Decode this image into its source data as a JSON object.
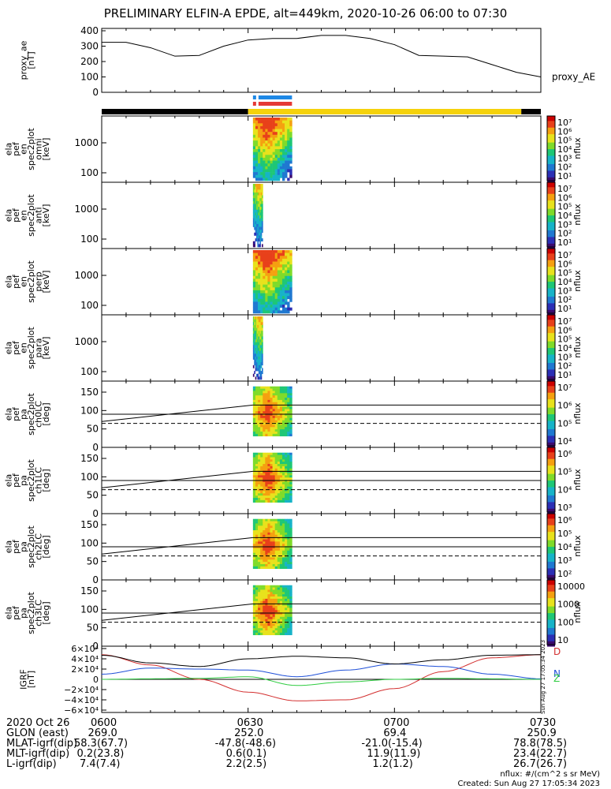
{
  "title": "PRELIMINARY ELFIN-A EPDE, alt=449km, 2020-10-26 06:00 to 07:30",
  "colors": {
    "axis": "#000000",
    "bar_night": "#000000",
    "bar_day": "#f5d20b",
    "bar_blue": "#1e88e5",
    "bar_red": "#e53935",
    "grf_x": "#d32f2f",
    "grf_y": "#1e4fd8",
    "grf_z": "#2ecc40",
    "grf_mag": "#000000"
  },
  "panels": [
    {
      "ylabel": [
        "ela",
        "pef",
        "en",
        "spec2plot",
        "omni",
        "[keV]"
      ],
      "yticks": [
        "1000",
        "100"
      ],
      "cbar_label": "nflux",
      "cbar_ticks": [
        "10⁷",
        "10⁶",
        "10⁵",
        "10⁴",
        "10³",
        "10²",
        "10¹"
      ]
    },
    {
      "ylabel": [
        "ela",
        "pef",
        "en",
        "spec2plot",
        "anti",
        "[keV]"
      ],
      "yticks": [
        "1000",
        "100"
      ],
      "cbar_label": "nflux",
      "cbar_ticks": [
        "10⁷",
        "10⁶",
        "10⁵",
        "10⁴",
        "10³",
        "10²",
        "10¹"
      ]
    },
    {
      "ylabel": [
        "ela",
        "pef",
        "en",
        "spec2plot",
        "perp",
        "[keV]"
      ],
      "yticks": [
        "1000",
        "100"
      ],
      "cbar_label": "nflux",
      "cbar_ticks": [
        "10⁷",
        "10⁶",
        "10⁵",
        "10⁴",
        "10³",
        "10²",
        "10¹"
      ]
    },
    {
      "ylabel": [
        "ela",
        "pef",
        "en",
        "spec2plot",
        "para",
        "[keV]"
      ],
      "yticks": [
        "1000",
        "100"
      ],
      "cbar_label": "nflux",
      "cbar_ticks": [
        "10⁷",
        "10⁶",
        "10⁵",
        "10⁴",
        "10³",
        "10²",
        "10¹"
      ]
    },
    {
      "ylabel": [
        "ela",
        "pef",
        "pa",
        "spec2plot",
        "ch0LC",
        "[deg]"
      ],
      "yticks": [
        "150",
        "100",
        "50",
        "0"
      ],
      "cbar_label": "nflux",
      "cbar_ticks": [
        "10⁷",
        "10⁶",
        "10⁵",
        "10⁴"
      ]
    },
    {
      "ylabel": [
        "ela",
        "pef",
        "pa",
        "spec2plot",
        "ch1LC",
        "[deg]"
      ],
      "yticks": [
        "150",
        "100",
        "50",
        "0"
      ],
      "cbar_label": "nflux",
      "cbar_ticks": [
        "10⁶",
        "10⁵",
        "10⁴",
        "10³"
      ]
    },
    {
      "ylabel": [
        "ela",
        "pef",
        "pa",
        "spec2plot",
        "ch2LC",
        "[deg]"
      ],
      "yticks": [
        "150",
        "100",
        "50",
        "0"
      ],
      "cbar_label": "nflux",
      "cbar_ticks": [
        "10⁶",
        "10⁵",
        "10⁴",
        "10³",
        "10²"
      ]
    },
    {
      "ylabel": [
        "ela",
        "pef",
        "pa",
        "spec2plot",
        "ch3LC",
        "[deg]"
      ],
      "yticks": [
        "150",
        "100",
        "50",
        "0"
      ],
      "cbar_label": "nflux",
      "cbar_ticks": [
        "10000",
        "1000",
        "100",
        "10"
      ]
    }
  ],
  "orbit_table": {
    "rows": [
      {
        "label": "2020 Oct 26",
        "values": [
          "0600",
          "0630",
          "0700",
          "0730"
        ]
      },
      {
        "label": "GLON (east)",
        "values": [
          "269.0",
          "252.0",
          "69.4",
          "250.9"
        ]
      },
      {
        "label": "MLAT-igrf(dip)",
        "values": [
          "58.3(67.7)",
          "-47.8(-48.6)",
          "-21.0(-15.4)",
          "78.8(78.5)"
        ]
      },
      {
        "label": "MLT-igrf(dip)",
        "values": [
          "0.2(23.8)",
          "0.6(0.1)",
          "11.9(11.9)",
          "23.4(22.7)"
        ]
      },
      {
        "label": "L-igrf(dip)",
        "values": [
          "7.4(7.4)",
          "2.2(2.5)",
          "1.2(1.2)",
          "26.7(26.7)"
        ]
      }
    ]
  },
  "footer": {
    "units": "nflux: #/(cm^2 s sr MeV)",
    "created": "Created: Sun Aug 27 17:05:34 2023",
    "side_stamp": "Sun Aug 27 17:05:34 2023"
  },
  "chart_data": [
    {
      "type": "line",
      "title": "",
      "ylabel": [
        "proxy_ae",
        "[nT]"
      ],
      "series_label": "proxy_AE",
      "x": [
        "06:00",
        "06:05",
        "06:10",
        "06:15",
        "06:20",
        "06:25",
        "06:30",
        "06:35",
        "06:40",
        "06:45",
        "06:50",
        "06:55",
        "07:00",
        "07:05",
        "07:10",
        "07:15",
        "07:20",
        "07:25",
        "07:30"
      ],
      "ylim": [
        0,
        400
      ],
      "yticks": [
        0,
        100,
        200,
        300,
        400
      ],
      "series": [
        {
          "values": [
            325,
            325,
            290,
            235,
            240,
            300,
            340,
            350,
            350,
            370,
            370,
            350,
            310,
            240,
            235,
            230,
            180,
            130,
            100
          ]
        }
      ]
    },
    {
      "type": "heatmap",
      "title": "",
      "note_bars": "orbit coverage strip: black=night, yellow=day; blue and red strips mark science zone 06:31–06:39",
      "panels": [
        "omni",
        "anti",
        "perp",
        "para",
        "ch0LC",
        "ch1LC",
        "ch2LC",
        "ch3LC"
      ],
      "data_interval": [
        "06:31",
        "06:39"
      ],
      "energy_range_keV": [
        63,
        7000
      ],
      "pitch_angle_lines_deg": [
        115,
        90,
        65
      ]
    },
    {
      "type": "line",
      "title": "",
      "ylabel": [
        "IGRF",
        "[nT]"
      ],
      "x": [
        "06:00",
        "06:10",
        "06:20",
        "06:30",
        "06:40",
        "06:50",
        "07:00",
        "07:10",
        "07:20",
        "07:30"
      ],
      "ylim": [
        -60000,
        60000
      ],
      "yticks": [
        "6×10⁴",
        "4×10⁴",
        "2×10⁴",
        "0",
        "−2×10⁴",
        "−4×10⁴",
        "−6×10⁴"
      ],
      "series": [
        {
          "key": "x",
          "values": [
            48000,
            28000,
            0,
            -25000,
            -42000,
            -40000,
            -18000,
            15000,
            42000,
            48000
          ]
        },
        {
          "key": "y",
          "values": [
            10000,
            22000,
            20000,
            18000,
            5000,
            18000,
            30000,
            25000,
            10000,
            1000
          ]
        },
        {
          "key": "z",
          "values": [
            0,
            1000,
            2000,
            5000,
            -12000,
            -5000,
            0,
            2000,
            1000,
            0
          ]
        },
        {
          "key": "mag",
          "values": [
            47000,
            32000,
            25000,
            40000,
            45000,
            42000,
            30000,
            38000,
            47000,
            48000
          ]
        }
      ],
      "side_labels": [
        "D",
        "N",
        "Z"
      ]
    }
  ]
}
